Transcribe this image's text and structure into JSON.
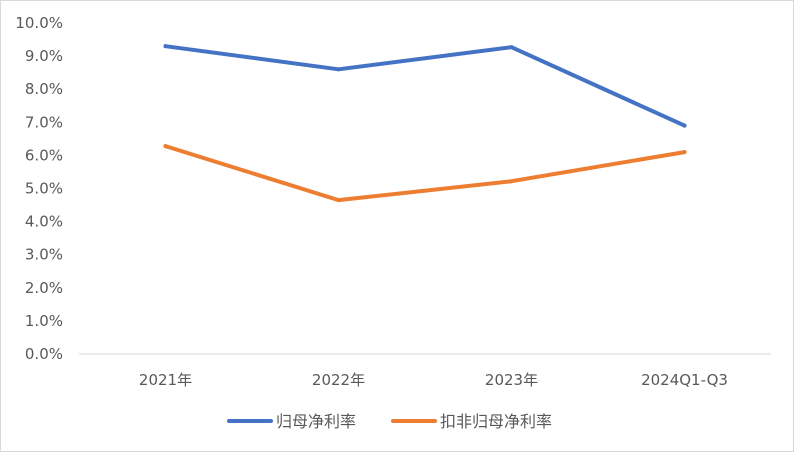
{
  "chart_data": {
    "type": "line",
    "categories": [
      "2021年",
      "2022年",
      "2023年",
      "2024Q1-Q3"
    ],
    "series": [
      {
        "name": "归母净利率",
        "values": [
          9.3,
          8.6,
          9.27,
          6.9
        ],
        "color": "#4472c4"
      },
      {
        "name": "扣非归母净利率",
        "values": [
          6.28,
          4.65,
          5.22,
          6.1
        ],
        "color": "#ed7d31"
      }
    ],
    "y_ticks": [
      "0.0%",
      "1.0%",
      "2.0%",
      "3.0%",
      "4.0%",
      "5.0%",
      "6.0%",
      "7.0%",
      "8.0%",
      "9.0%",
      "10.0%"
    ],
    "ylim": [
      0,
      10
    ],
    "y_unit": "%",
    "grid": false,
    "legend_position": "bottom",
    "axis_color": "#d9d9d9",
    "text_color": "#595959"
  }
}
